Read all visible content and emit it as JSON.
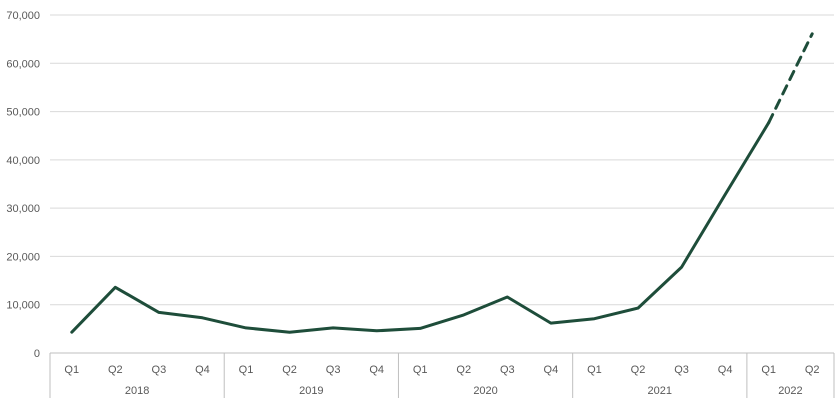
{
  "chart_data": {
    "type": "line",
    "title": "",
    "xlabel": "",
    "ylabel": "",
    "ylim": [
      0,
      70000
    ],
    "yticks": [
      0,
      10000,
      20000,
      30000,
      40000,
      50000,
      60000,
      70000
    ],
    "ytick_labels": [
      "0",
      "10,000",
      "20,000",
      "30,000",
      "40,000",
      "50,000",
      "60,000",
      "70,000"
    ],
    "grid": true,
    "legend": "none",
    "groups": [
      {
        "label": "2018",
        "quarters": [
          "Q1",
          "Q2",
          "Q3",
          "Q4"
        ]
      },
      {
        "label": "2019",
        "quarters": [
          "Q1",
          "Q2",
          "Q3",
          "Q4"
        ]
      },
      {
        "label": "2020",
        "quarters": [
          "Q1",
          "Q2",
          "Q3",
          "Q4"
        ]
      },
      {
        "label": "2021",
        "quarters": [
          "Q1",
          "Q2",
          "Q3",
          "Q4"
        ]
      },
      {
        "label": "2022",
        "quarters": [
          "Q1",
          "Q2"
        ]
      }
    ],
    "series": [
      {
        "values": [
          4300,
          13600,
          8400,
          7300,
          5200,
          4300,
          5200,
          4600,
          5100,
          7900,
          11600,
          6200,
          7100,
          9300,
          17800,
          32800,
          47700,
          66100
        ],
        "dashed_from_index": 16,
        "color": "#1e4d3a"
      }
    ]
  }
}
